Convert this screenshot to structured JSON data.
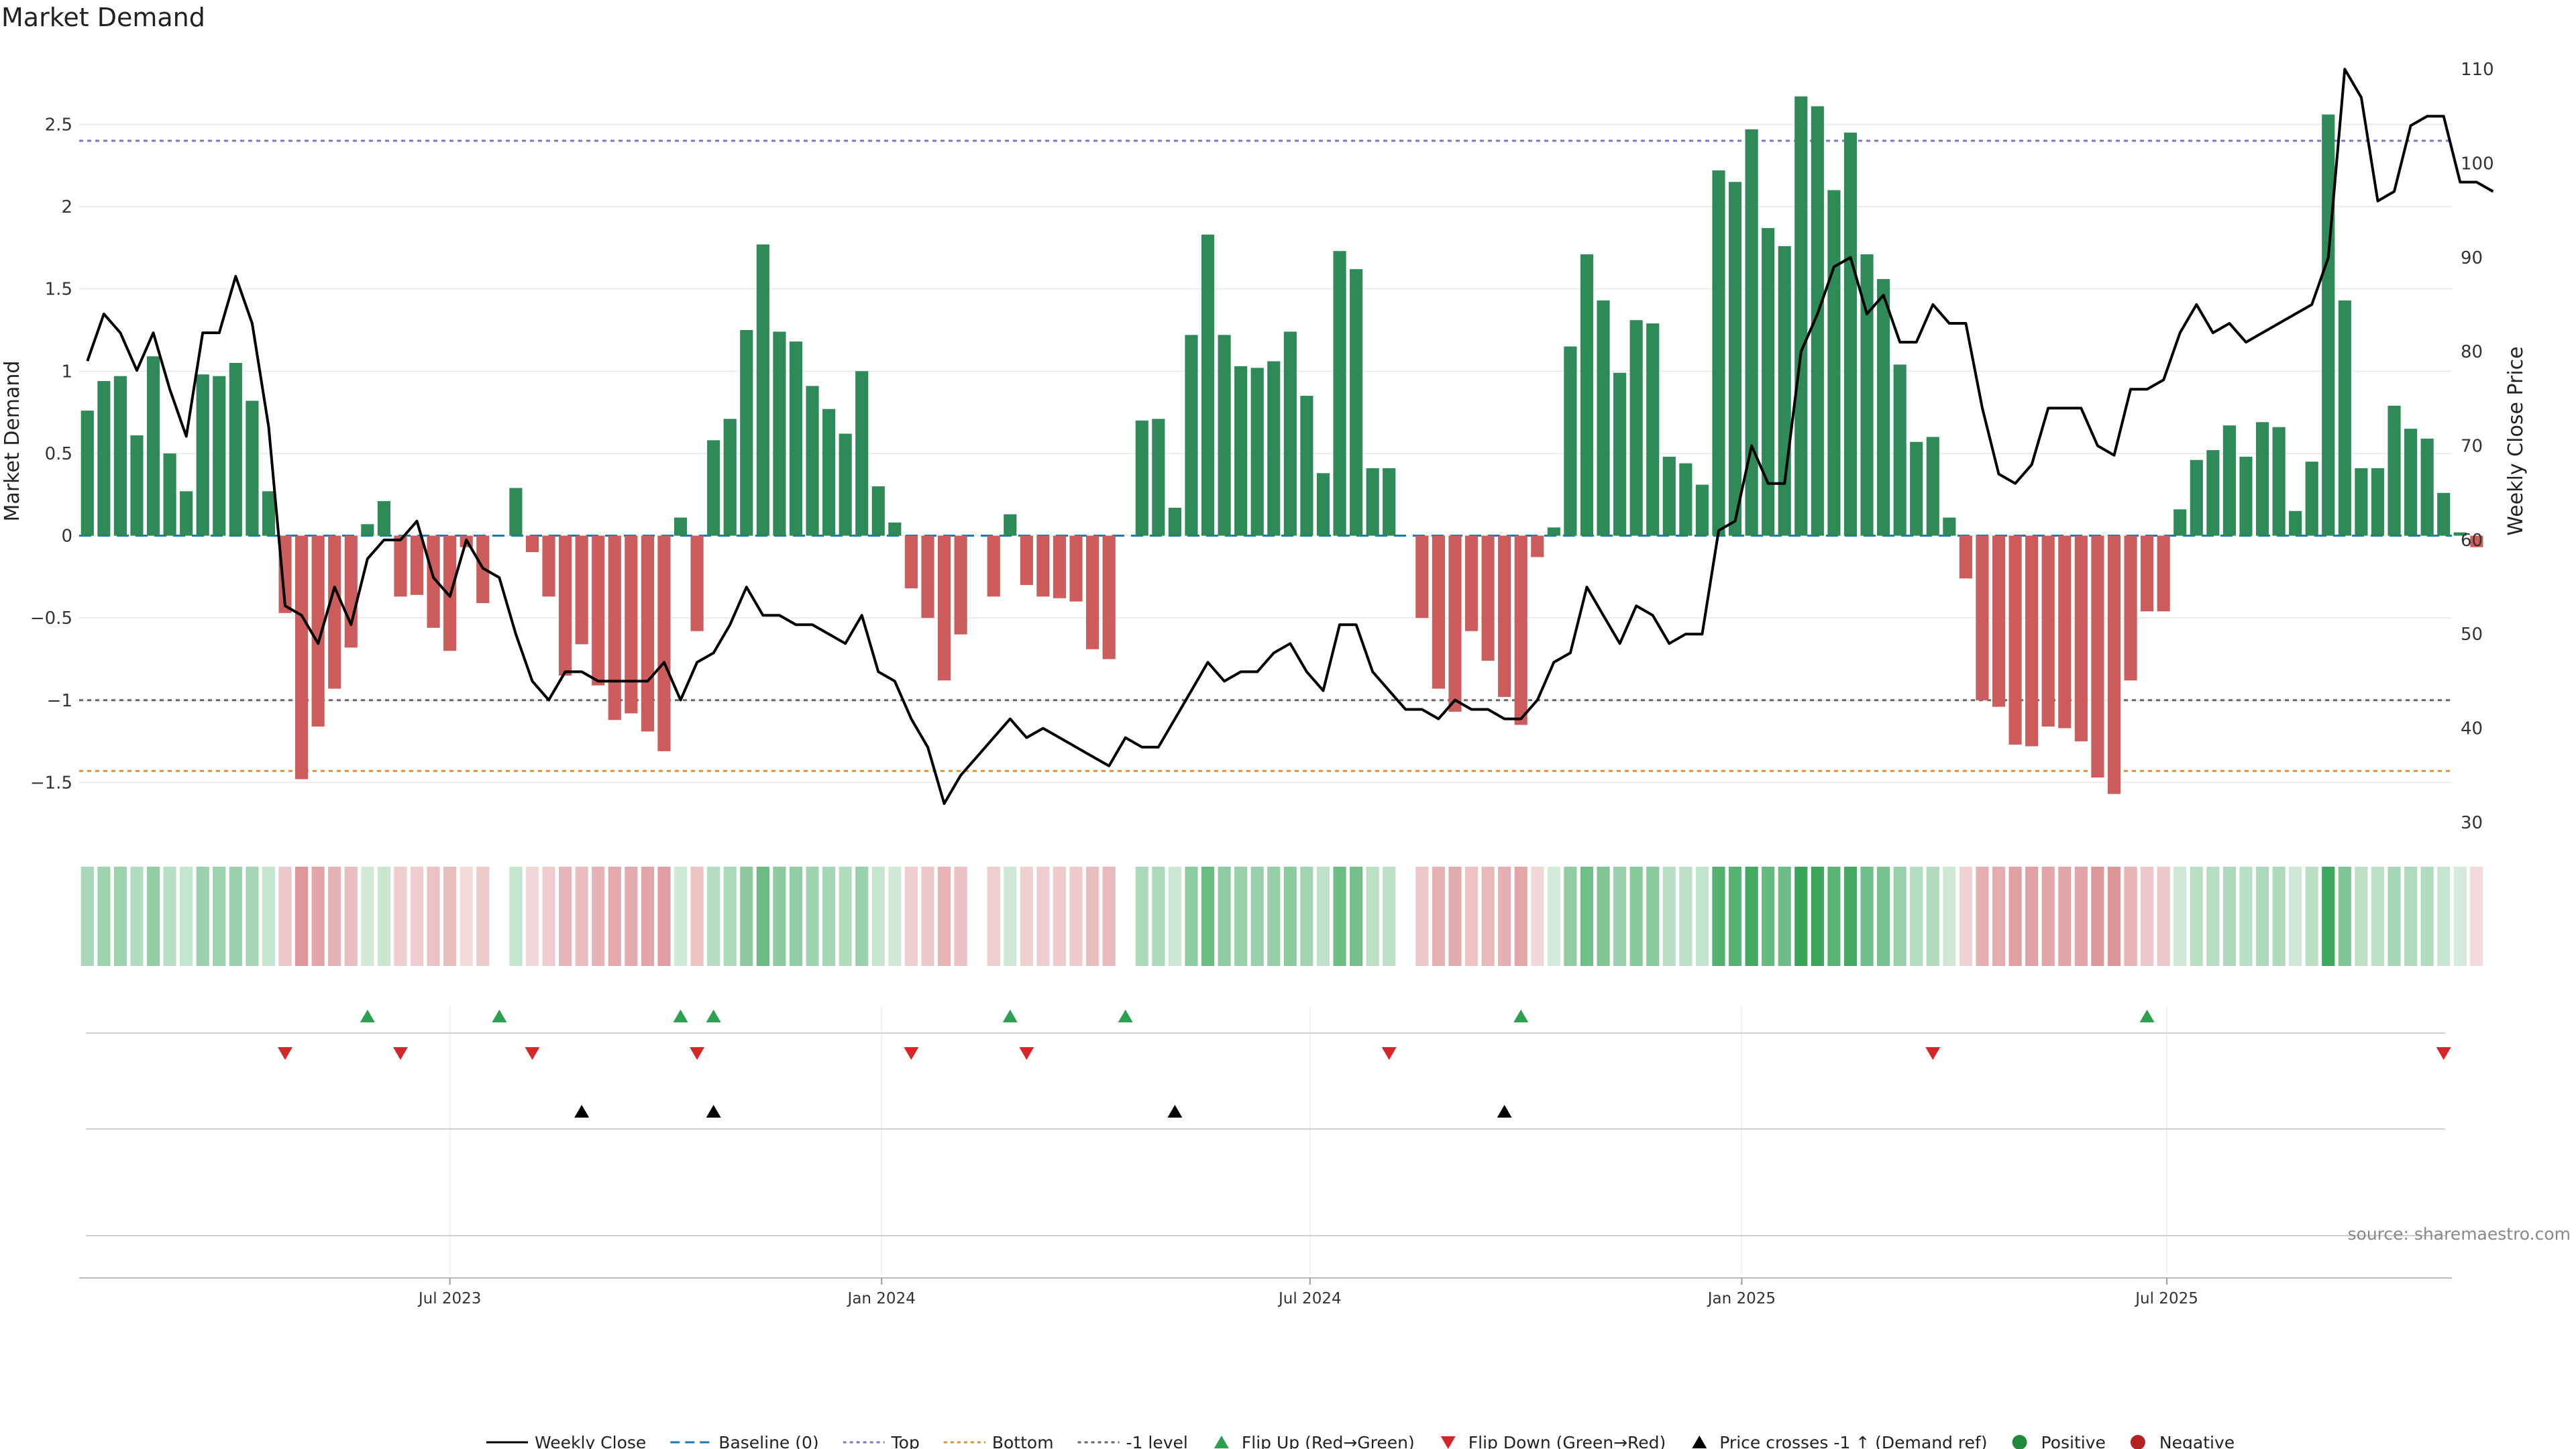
{
  "chart_data": {
    "type": "bar",
    "title": "Market Demand",
    "ylabel_left": "Market Demand",
    "ylabel_right": "Weekly Close Price",
    "ylim_left": [
      -1.8,
      2.95
    ],
    "ylim_right": [
      29,
      112
    ],
    "left_ticks": [
      -1.5,
      -1,
      -0.5,
      0,
      0.5,
      1,
      1.5,
      2,
      2.5
    ],
    "left_tick_labels": [
      "−1.5",
      "−1",
      "−0.5",
      "0",
      "0.5",
      "1",
      "1.5",
      "2",
      "2.5"
    ],
    "right_ticks": [
      30,
      40,
      50,
      60,
      70,
      80,
      90,
      100,
      110
    ],
    "right_tick_labels": [
      "30",
      "40",
      "50",
      "60",
      "70",
      "80",
      "90",
      "100",
      "110"
    ],
    "levels": {
      "top": 2.4,
      "bottom": -1.43,
      "minus_one": -1.0
    },
    "x_count": 144,
    "x_ticks": [
      {
        "index": 22,
        "label": "Jul 2023"
      },
      {
        "index": 48.2,
        "label": "Jan 2024"
      },
      {
        "index": 74.2,
        "label": "Jul 2024"
      },
      {
        "index": 100.4,
        "label": "Jan 2025"
      },
      {
        "index": 126.2,
        "label": "Jul 2025"
      }
    ],
    "demand": [
      0.76,
      0.94,
      0.97,
      0.61,
      1.09,
      0.5,
      0.27,
      0.98,
      0.97,
      1.05,
      0.82,
      0.27,
      -0.47,
      -1.48,
      -1.16,
      -0.93,
      -0.68,
      0.07,
      0.21,
      -0.37,
      -0.36,
      -0.56,
      -0.7,
      -0.07,
      -0.41,
      0.0,
      0.29,
      -0.1,
      -0.37,
      -0.85,
      -0.66,
      -0.91,
      -1.12,
      -1.08,
      -1.19,
      -1.31,
      0.11,
      -0.58,
      0.58,
      0.71,
      1.25,
      1.77,
      1.24,
      1.18,
      0.91,
      0.77,
      0.62,
      1.0,
      0.3,
      0.08,
      -0.32,
      -0.5,
      -0.88,
      -0.6,
      0.0,
      -0.37,
      0.13,
      -0.3,
      -0.37,
      -0.38,
      -0.4,
      -0.69,
      -0.75,
      0.0,
      0.7,
      0.71,
      0.17,
      1.22,
      1.83,
      1.22,
      1.03,
      1.02,
      1.06,
      1.24,
      0.85,
      0.38,
      1.73,
      1.62,
      0.41,
      0.41,
      0.0,
      -0.5,
      -0.93,
      -1.07,
      -0.58,
      -0.76,
      -0.98,
      -1.15,
      -0.13,
      0.05,
      1.15,
      1.71,
      1.43,
      0.99,
      1.31,
      1.29,
      0.48,
      0.44,
      0.31,
      2.22,
      2.15,
      2.47,
      1.87,
      1.76,
      2.67,
      2.61,
      2.1,
      2.45,
      1.71,
      1.56,
      1.04,
      0.57,
      0.6,
      0.11,
      -0.26,
      -1.0,
      -1.04,
      -1.27,
      -1.28,
      -1.16,
      -1.17,
      -1.25,
      -1.47,
      -1.57,
      -0.88,
      -0.46,
      -0.46,
      0.16,
      0.46,
      0.52,
      0.67,
      0.48,
      0.69,
      0.66,
      0.15,
      0.45,
      2.56,
      1.43,
      0.41,
      0.41,
      0.79,
      0.65,
      0.59,
      0.26,
      0.02,
      -0.07
    ],
    "price": [
      79,
      84,
      82,
      78,
      82,
      76,
      71,
      82,
      82,
      88,
      83,
      72,
      53,
      52,
      49,
      55,
      51,
      58,
      60,
      60,
      62,
      56,
      54,
      60,
      57,
      56,
      50,
      45,
      43,
      46,
      46,
      45,
      45,
      45,
      45,
      47,
      43,
      47,
      48,
      51,
      55,
      52,
      52,
      51,
      51,
      50,
      49,
      52,
      46,
      45,
      41,
      38,
      32,
      35,
      37,
      39,
      41,
      39,
      40,
      39,
      38,
      37,
      36,
      39,
      38,
      38,
      41,
      44,
      47,
      45,
      46,
      46,
      48,
      49,
      46,
      44,
      51,
      51,
      46,
      44,
      42,
      42,
      41,
      43,
      42,
      42,
      41,
      41,
      43,
      47,
      48,
      55,
      52,
      49,
      53,
      52,
      49,
      50,
      50,
      61,
      62,
      70,
      66,
      66,
      80,
      84,
      89,
      90,
      84,
      86,
      81,
      81,
      85,
      83,
      83,
      74,
      67,
      66,
      68,
      74,
      74,
      74,
      70,
      69,
      76,
      76,
      77,
      82,
      85,
      82,
      83,
      81,
      82,
      83,
      84,
      85,
      90,
      110,
      107,
      96,
      97,
      104,
      105,
      105,
      98,
      98,
      97
    ],
    "flip_up": [
      17,
      25,
      36,
      38,
      56,
      63,
      87,
      125
    ],
    "flip_down": [
      12,
      19,
      27,
      37,
      50,
      57,
      79,
      112,
      143
    ],
    "price_cross": [
      30,
      38,
      66,
      86
    ],
    "legend": [
      {
        "type": "line",
        "label": "Weekly Close",
        "color": "#000000"
      },
      {
        "type": "dashed",
        "label": "Baseline (0)",
        "color": "#1f77b4"
      },
      {
        "type": "dotted",
        "label": "Top",
        "color": "#7b74c9"
      },
      {
        "type": "dotted",
        "label": "Bottom",
        "color": "#e0923a"
      },
      {
        "type": "dotted",
        "label": "-1 level",
        "color": "#666666"
      },
      {
        "type": "tri-up",
        "label": "Flip Up (Red→Green)",
        "color": "#2ca04f"
      },
      {
        "type": "tri-down",
        "label": "Flip Down (Green→Red)",
        "color": "#d62728"
      },
      {
        "type": "tri-up",
        "label": "Price crosses -1 ↑ (Demand ref)",
        "color": "#000000"
      },
      {
        "type": "dot",
        "label": "Positive",
        "color": "#1f8a3a"
      },
      {
        "type": "dot",
        "label": "Negative",
        "color": "#b22222"
      }
    ],
    "colors": {
      "positive": "#2e8b57",
      "negative": "#cd5c5c",
      "price": "#000000"
    },
    "source": "source: sharemaestro.com"
  }
}
